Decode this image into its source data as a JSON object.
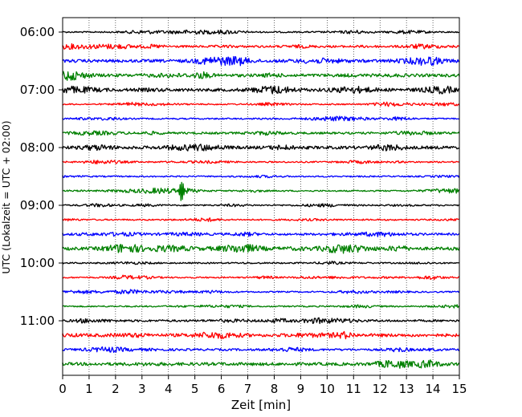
{
  "chart_data": {
    "type": "line",
    "title": "",
    "xlabel": "Zeit  [min]",
    "ylabel": "UTC (Lokalzeit = UTC + 02:00)",
    "xlim": [
      0,
      15
    ],
    "x_ticks": [
      0,
      1,
      2,
      3,
      4,
      5,
      6,
      7,
      8,
      9,
      10,
      11,
      12,
      13,
      14,
      15
    ],
    "y_time_range": [
      "06:00",
      "12:00"
    ],
    "y_ticks": [
      "06:00",
      "07:00",
      "08:00",
      "09:00",
      "10:00",
      "11:00"
    ],
    "row_minutes": 15,
    "grid": "vertical dotted lines at each minute",
    "row_colors": [
      "#000000",
      "#ff0000",
      "#0000ff",
      "#008000"
    ],
    "trace_rows": [
      {
        "start": "06:00",
        "color": "#000000",
        "amplitude": "low"
      },
      {
        "start": "06:15",
        "color": "#ff0000",
        "amplitude": "low-moderate"
      },
      {
        "start": "06:30",
        "color": "#0000ff",
        "amplitude": "moderate"
      },
      {
        "start": "06:45",
        "color": "#008000",
        "amplitude": "moderate"
      },
      {
        "start": "07:00",
        "color": "#000000",
        "amplitude": "moderate"
      },
      {
        "start": "07:15",
        "color": "#ff0000",
        "amplitude": "low"
      },
      {
        "start": "07:30",
        "color": "#0000ff",
        "amplitude": "low"
      },
      {
        "start": "07:45",
        "color": "#008000",
        "amplitude": "low-moderate"
      },
      {
        "start": "08:00",
        "color": "#000000",
        "amplitude": "moderate"
      },
      {
        "start": "08:15",
        "color": "#ff0000",
        "amplitude": "low"
      },
      {
        "start": "08:30",
        "color": "#0000ff",
        "amplitude": "low"
      },
      {
        "start": "08:45",
        "color": "#008000",
        "amplitude": "low",
        "event_minute": 4.5,
        "event": "large spike"
      },
      {
        "start": "09:00",
        "color": "#000000",
        "amplitude": "low"
      },
      {
        "start": "09:15",
        "color": "#ff0000",
        "amplitude": "low"
      },
      {
        "start": "09:30",
        "color": "#0000ff",
        "amplitude": "low-moderate"
      },
      {
        "start": "09:45",
        "color": "#008000",
        "amplitude": "moderate"
      },
      {
        "start": "10:00",
        "color": "#000000",
        "amplitude": "low"
      },
      {
        "start": "10:15",
        "color": "#ff0000",
        "amplitude": "low"
      },
      {
        "start": "10:30",
        "color": "#0000ff",
        "amplitude": "low"
      },
      {
        "start": "10:45",
        "color": "#008000",
        "amplitude": "low"
      },
      {
        "start": "11:00",
        "color": "#000000",
        "amplitude": "low-moderate"
      },
      {
        "start": "11:15",
        "color": "#ff0000",
        "amplitude": "moderate"
      },
      {
        "start": "11:30",
        "color": "#0000ff",
        "amplitude": "low-moderate"
      },
      {
        "start": "11:45",
        "color": "#008000",
        "amplitude": "moderate"
      }
    ]
  }
}
